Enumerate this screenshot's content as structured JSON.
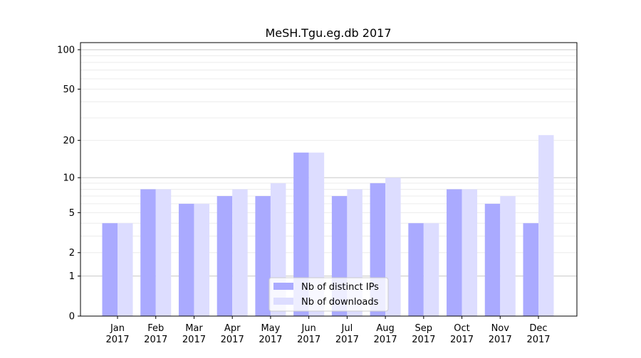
{
  "chart_data": {
    "type": "bar",
    "title": "MeSH.Tgu.eg.db 2017",
    "xlabel": "",
    "ylabel": "",
    "yscale": "log(y+1)",
    "ylim": [
      0,
      116
    ],
    "yticks": [
      0,
      1,
      2,
      5,
      10,
      20,
      50,
      100
    ],
    "ytick_labels": [
      "0",
      "1",
      "2",
      "5",
      "10",
      "20",
      "50",
      "100"
    ],
    "categories": [
      "Jan\n2017",
      "Feb\n2017",
      "Mar\n2017",
      "Apr\n2017",
      "May\n2017",
      "Jun\n2017",
      "Jul\n2017",
      "Aug\n2017",
      "Sep\n2017",
      "Oct\n2017",
      "Nov\n2017",
      "Dec\n2017"
    ],
    "category_months": [
      "Jan",
      "Feb",
      "Mar",
      "Apr",
      "May",
      "Jun",
      "Jul",
      "Aug",
      "Sep",
      "Oct",
      "Nov",
      "Dec"
    ],
    "category_year": "2017",
    "series": [
      {
        "name": "Nb of distinct IPs",
        "color": "#aaaaff",
        "values": [
          4,
          8,
          6,
          7,
          7,
          16,
          7,
          9,
          4,
          8,
          6,
          4
        ]
      },
      {
        "name": "Nb of downloads",
        "color": "#ddddff",
        "values": [
          4,
          8,
          6,
          8,
          9,
          16,
          8,
          10,
          4,
          8,
          7,
          22
        ]
      }
    ],
    "grid": true,
    "legend_position": "lower-center"
  }
}
